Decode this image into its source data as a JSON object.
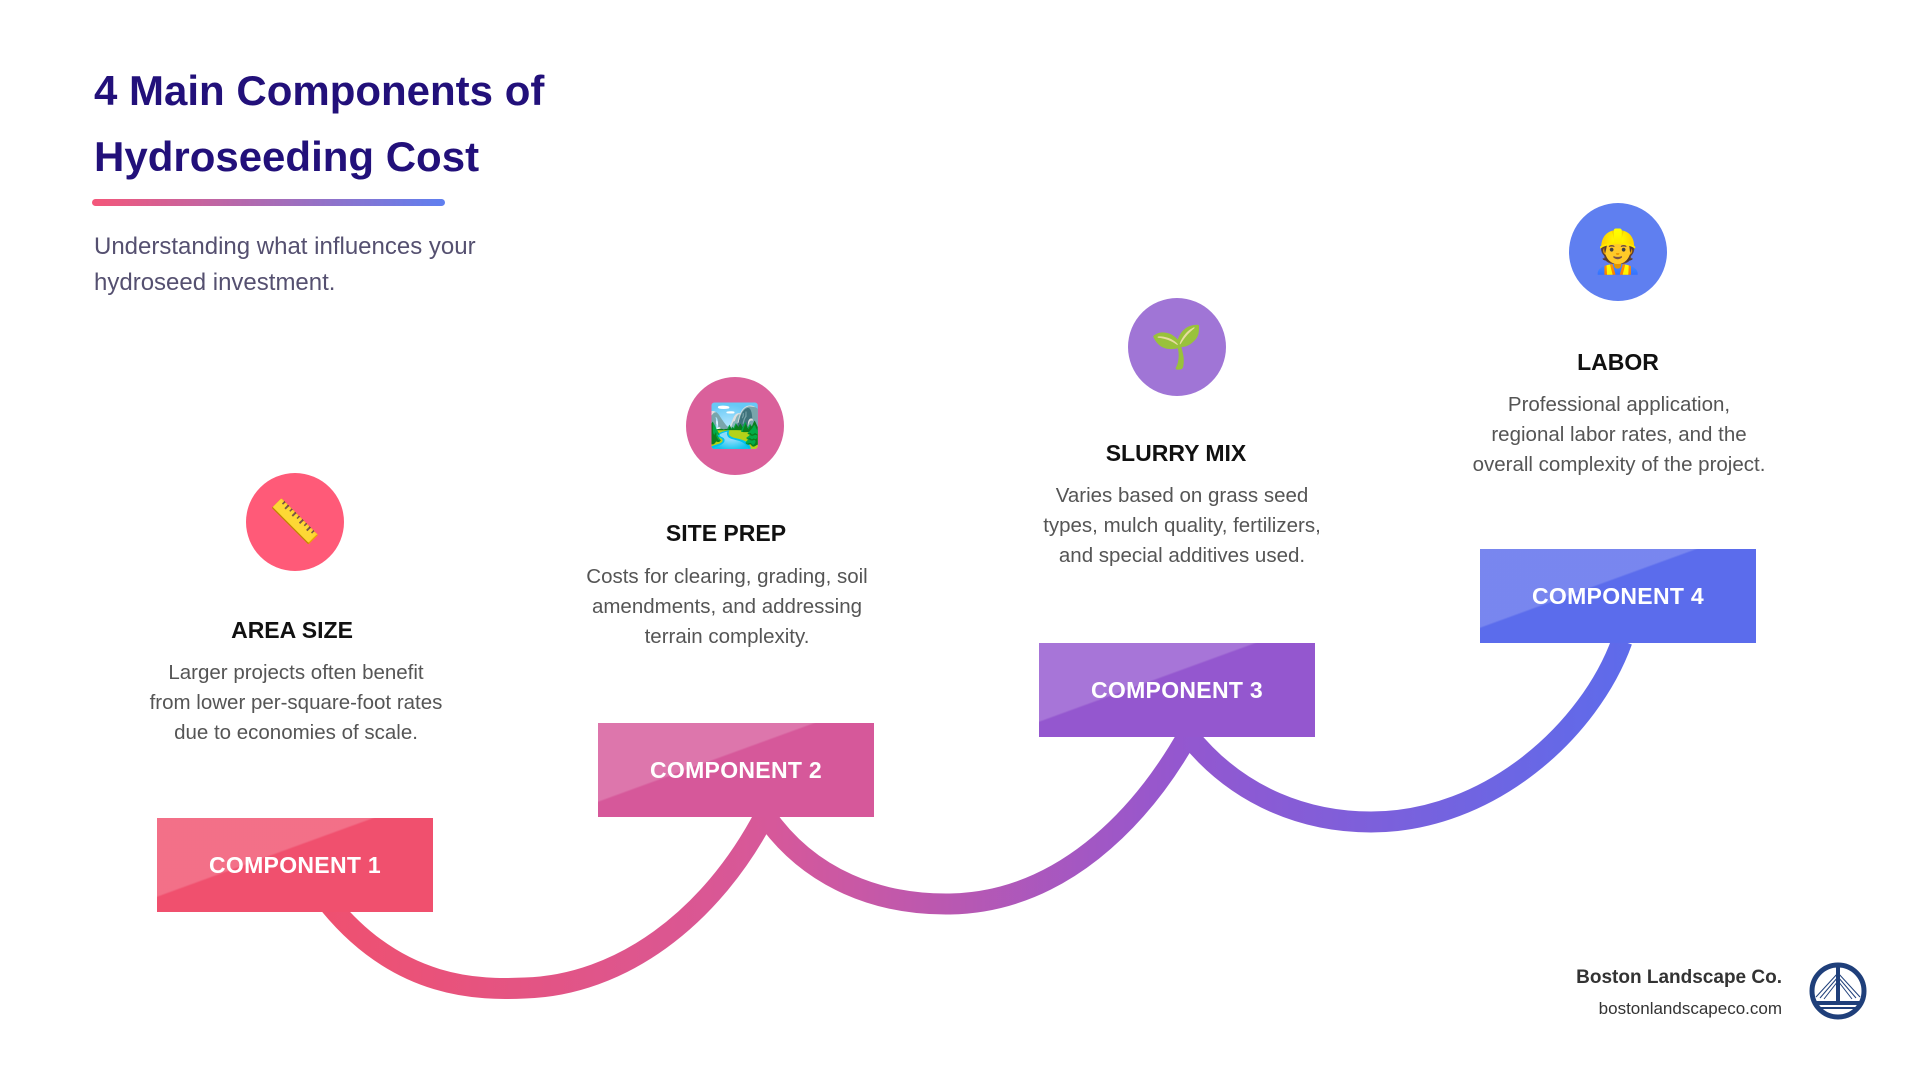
{
  "title": "4 Main Components of Hydroseeding Cost",
  "subtitle": "Understanding what influences your hydroseed investment.",
  "components": [
    {
      "box_label": "COMPONENT 1",
      "heading": "AREA SIZE",
      "description": "Larger projects often benefit from lower per-square-foot rates due to economies of scale.",
      "icon": "ruler-icon",
      "icon_glyph": "📏",
      "color": "#f0506e",
      "circle_color": "#ff5a78"
    },
    {
      "box_label": "COMPONENT 2",
      "heading": "SITE PREP",
      "description": "Costs for clearing, grading, soil amendments, and addressing terrain complexity.",
      "icon": "landscape-picture-icon",
      "icon_glyph": "🏞️",
      "color": "#d6589a",
      "circle_color": "#da609b"
    },
    {
      "box_label": "COMPONENT 3",
      "heading": "SLURRY MIX",
      "description": "Varies based on grass seed types, mulch quality, fertilizers, and special additives used.",
      "icon": "seedling-icon",
      "icon_glyph": "🌱",
      "color": "#9457cf",
      "circle_color": "#a075d6"
    },
    {
      "box_label": "COMPONENT 4",
      "heading": "LABOR",
      "description": "Professional application, regional labor rates, and the overall complexity of the project.",
      "icon": "construction-worker-icon",
      "icon_glyph": "👷",
      "color": "#5b6cec",
      "circle_color": "#5f7ff0"
    }
  ],
  "footer": {
    "company": "Boston Landscape Co.",
    "url": "bostonlandscapeco.com",
    "logo": "bridge-logo-icon"
  }
}
